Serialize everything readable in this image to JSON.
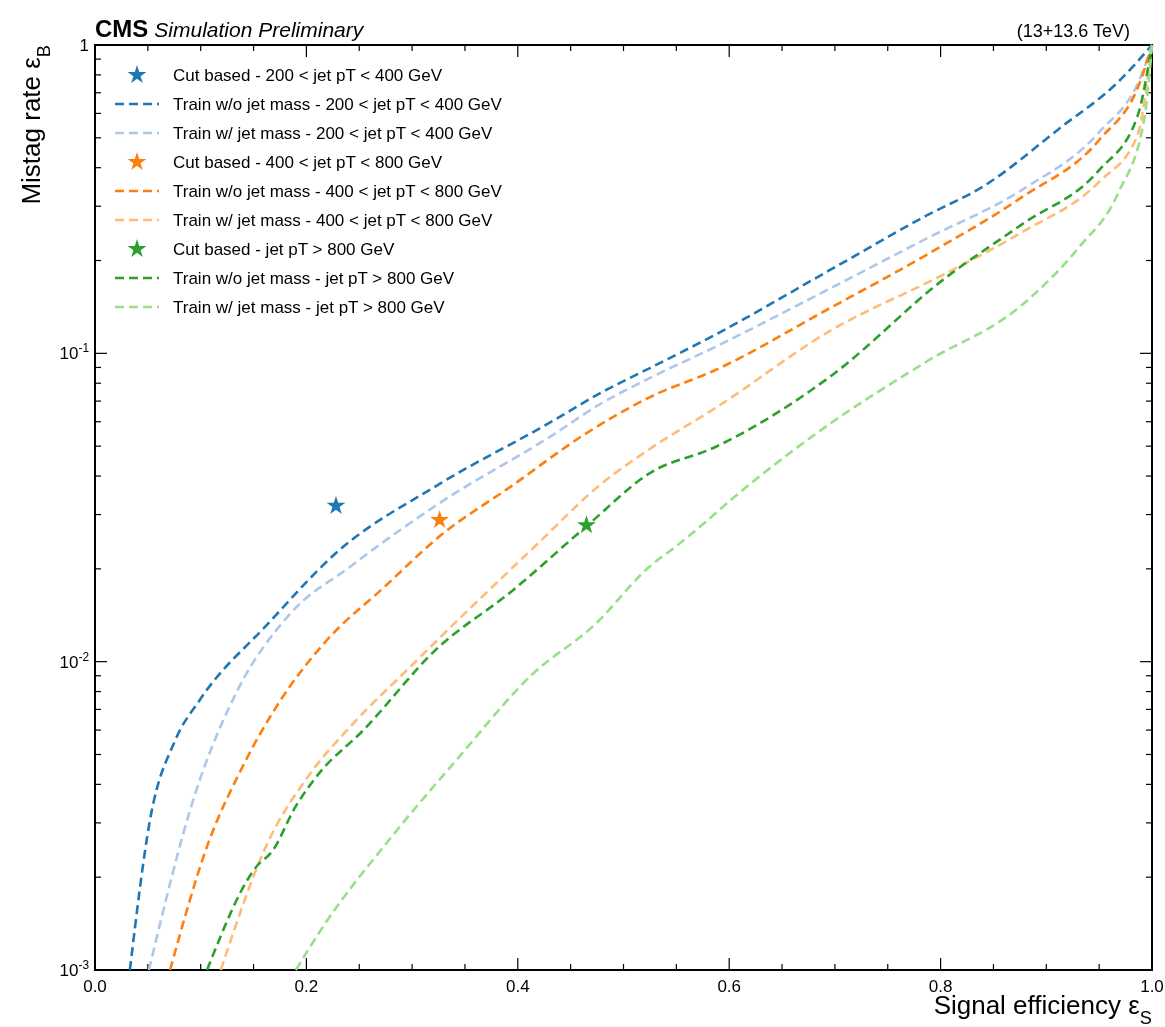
{
  "chart_data": {
    "type": "line",
    "title": "CMS",
    "subtitle": "Simulation Preliminary",
    "annotations": [
      "(13+13.6 TeV)"
    ],
    "xlabel": "Signal efficiency ε$_{S}$",
    "ylabel": "Mistag rate ε$_{B}$",
    "log": "y",
    "xlim": [
      0,
      1
    ],
    "ylim": [
      0.001,
      1
    ],
    "xticks": [
      {
        "value": 0,
        "label": "0.0"
      },
      {
        "value": 0.05,
        "label": null
      },
      {
        "value": 0.1,
        "label": null
      },
      {
        "value": 0.15,
        "label": null
      },
      {
        "value": 0.2,
        "label": "0.2"
      },
      {
        "value": 0.25,
        "label": null
      },
      {
        "value": 0.3,
        "label": null
      },
      {
        "value": 0.35,
        "label": null
      },
      {
        "value": 0.4,
        "label": "0.4"
      },
      {
        "value": 0.45,
        "label": null
      },
      {
        "value": 0.5,
        "label": null
      },
      {
        "value": 0.55,
        "label": null
      },
      {
        "value": 0.6,
        "label": "0.6"
      },
      {
        "value": 0.65,
        "label": null
      },
      {
        "value": 0.7,
        "label": null
      },
      {
        "value": 0.75,
        "label": null
      },
      {
        "value": 0.8,
        "label": "0.8"
      },
      {
        "value": 0.85,
        "label": null
      },
      {
        "value": 0.9,
        "label": null
      },
      {
        "value": 0.95,
        "label": null
      },
      {
        "value": 1,
        "label": "1.0"
      }
    ],
    "yticks": [
      {
        "value": 0.001,
        "label": "10$^{-3}$"
      },
      {
        "value": 0.002,
        "label": null
      },
      {
        "value": 0.003,
        "label": null
      },
      {
        "value": 0.004,
        "label": null
      },
      {
        "value": 0.005,
        "label": null
      },
      {
        "value": 0.006,
        "label": null
      },
      {
        "value": 0.007,
        "label": null
      },
      {
        "value": 0.008,
        "label": null
      },
      {
        "value": 0.009,
        "label": null
      },
      {
        "value": 0.01,
        "label": "10$^{-2}$"
      },
      {
        "value": 0.02,
        "label": null
      },
      {
        "value": 0.03,
        "label": null
      },
      {
        "value": 0.04,
        "label": null
      },
      {
        "value": 0.05,
        "label": null
      },
      {
        "value": 0.06,
        "label": null
      },
      {
        "value": 0.07,
        "label": null
      },
      {
        "value": 0.08,
        "label": null
      },
      {
        "value": 0.09,
        "label": null
      },
      {
        "value": 0.1,
        "label": "10$^{-1}$"
      },
      {
        "value": 0.2,
        "label": null
      },
      {
        "value": 0.3,
        "label": null
      },
      {
        "value": 0.4,
        "label": null
      },
      {
        "value": 0.5,
        "label": null
      },
      {
        "value": 0.6,
        "label": null
      },
      {
        "value": 0.7,
        "label": null
      },
      {
        "value": 0.8,
        "label": null
      },
      {
        "value": 0.9,
        "label": null
      },
      {
        "value": 1,
        "label": "1"
      }
    ],
    "grid": false,
    "legend": "top left",
    "series": [
      {
        "name": "Cut based - 200 < jet pT < 400 GeV",
        "type": "scatter",
        "marker": "star",
        "color": "#1f77b4",
        "x": [
          0.228
        ],
        "values": [
          0.032
        ]
      },
      {
        "name": "Train w/o jet mass - 200 < jet pT < 400 GeV",
        "line_style": "dashed",
        "color": "#1f77b4",
        "x": [
          0.033,
          0.052,
          0.076,
          0.099,
          0.163,
          0.228,
          0.326,
          0.433,
          0.478,
          0.525,
          0.587,
          0.695,
          0.786,
          0.841,
          0.913,
          0.968,
          1.0
        ],
        "values": [
          0.001,
          0.00306,
          0.00557,
          0.0075,
          0.0132,
          0.0225,
          0.0377,
          0.0603,
          0.0743,
          0.0896,
          0.115,
          0.186,
          0.279,
          0.349,
          0.538,
          0.759,
          1.0
        ]
      },
      {
        "name": "Train w/ jet mass - 200 < jet pT < 400 GeV",
        "line_style": "dashed",
        "color": "#aec7e8",
        "x": [
          0.051,
          0.095,
          0.134,
          0.183,
          0.242,
          0.326,
          0.433,
          0.478,
          0.525,
          0.587,
          0.695,
          0.786,
          0.877,
          0.95,
          0.99,
          1.0
        ],
        "values": [
          0.001,
          0.00375,
          0.00797,
          0.0141,
          0.0204,
          0.0327,
          0.0543,
          0.0685,
          0.0832,
          0.105,
          0.162,
          0.235,
          0.339,
          0.522,
          0.8,
          1.0
        ]
      },
      {
        "name": "Cut based - 400 < jet pT < 800 GeV",
        "type": "scatter",
        "marker": "star",
        "color": "#ff7f0e",
        "x": [
          0.326
        ],
        "values": [
          0.0288
        ]
      },
      {
        "name": "Train w/o jet mass - 400 < jet pT < 800 GeV",
        "line_style": "dashed",
        "color": "#ff7f0e",
        "x": [
          0.071,
          0.107,
          0.139,
          0.175,
          0.218,
          0.274,
          0.326,
          0.394,
          0.465,
          0.525,
          0.587,
          0.695,
          0.786,
          0.877,
          0.95,
          0.99,
          1.0
        ],
        "values": [
          0.001,
          0.00257,
          0.00452,
          0.00745,
          0.0116,
          0.0175,
          0.0255,
          0.0371,
          0.0551,
          0.0721,
          0.0883,
          0.14,
          0.208,
          0.321,
          0.492,
          0.78,
          1.0
        ]
      },
      {
        "name": "Train w/ jet mass - 400 < jet pT < 800 GeV",
        "line_style": "dashed",
        "color": "#ffbb78",
        "x": [
          0.119,
          0.163,
          0.202,
          0.242,
          0.298,
          0.354,
          0.417,
          0.478,
          0.525,
          0.587,
          0.695,
          0.804,
          0.877,
          0.95,
          0.986,
          1.0
        ],
        "values": [
          0.001,
          0.00257,
          0.00426,
          0.00618,
          0.0096,
          0.0148,
          0.0238,
          0.0375,
          0.049,
          0.0665,
          0.118,
          0.181,
          0.247,
          0.36,
          0.507,
          1.0
        ]
      },
      {
        "name": "Cut based - jet pT > 800 GeV",
        "type": "scatter",
        "marker": "star",
        "color": "#2ca02c",
        "x": [
          0.465
        ],
        "values": [
          0.0277
        ]
      },
      {
        "name": "Train w/o jet mass - jet pT > 800 GeV",
        "line_style": "dashed",
        "color": "#2ca02c",
        "x": [
          0.106,
          0.154,
          0.167,
          0.19,
          0.21,
          0.254,
          0.322,
          0.394,
          0.465,
          0.525,
          0.587,
          0.695,
          0.804,
          0.877,
          0.95,
          0.986,
          1.0
        ],
        "values": [
          0.001,
          0.00219,
          0.00241,
          0.0034,
          0.00426,
          0.006,
          0.0109,
          0.0169,
          0.0275,
          0.0409,
          0.0497,
          0.0838,
          0.175,
          0.262,
          0.393,
          0.584,
          1.0
        ]
      },
      {
        "name": "Train w/ jet mass - jet pT > 800 GeV",
        "line_style": "dashed",
        "color": "#98df8a",
        "x": [
          0.19,
          0.215,
          0.282,
          0.342,
          0.413,
          0.473,
          0.525,
          0.55,
          0.623,
          0.695,
          0.786,
          0.877,
          0.931,
          0.968,
          0.993,
          1.0
        ],
        "values": [
          0.001,
          0.00137,
          0.00274,
          0.0048,
          0.00905,
          0.0132,
          0.0204,
          0.0237,
          0.0385,
          0.059,
          0.0937,
          0.1435,
          0.221,
          0.331,
          0.584,
          1.0
        ]
      }
    ]
  }
}
